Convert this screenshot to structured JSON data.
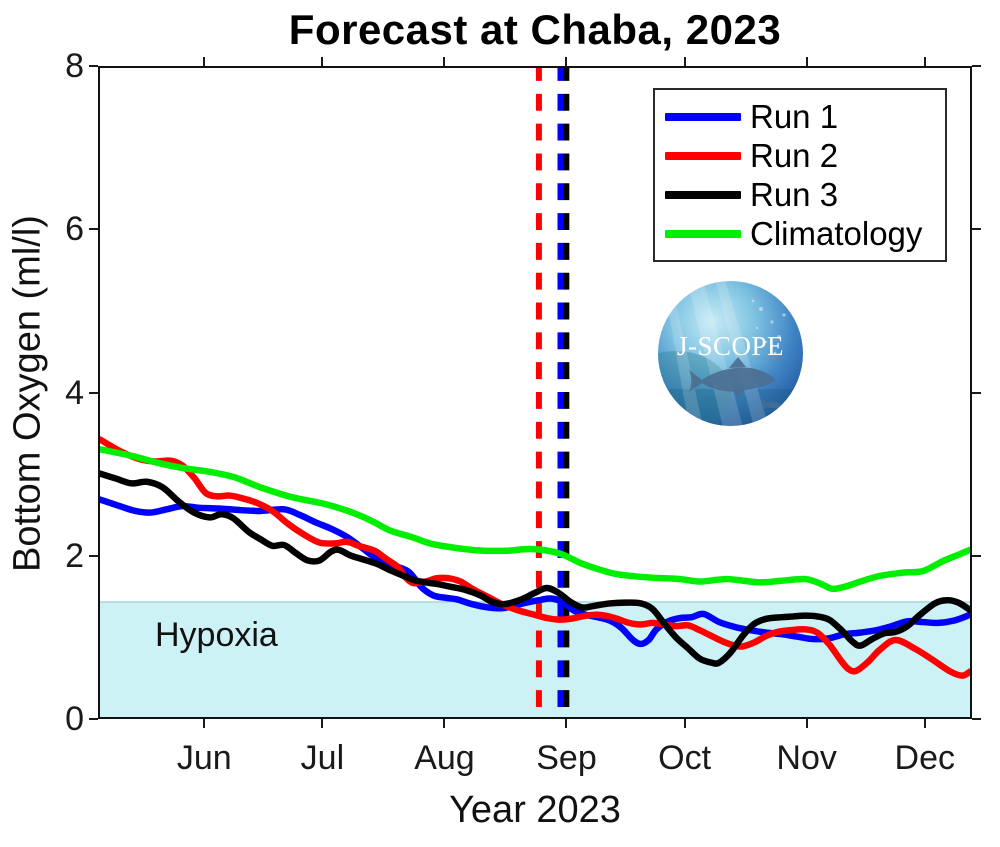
{
  "figure": {
    "title": "Forecast at Chaba, 2023",
    "xlabel": "Year 2023",
    "ylabel": "Bottom Oxygen (ml/l)"
  },
  "hypoxia": {
    "label": "Hypoxia",
    "threshold_mll": 1.4,
    "fill_color": "#cdf2f6"
  },
  "logo": {
    "text": "J-SCOPE"
  },
  "chart_data": {
    "type": "line",
    "title": "Forecast at Chaba, 2023",
    "xlabel": "Year 2023",
    "ylabel": "Bottom Oxygen (ml/l)",
    "grid": false,
    "legend_position": "top-right",
    "x_axis": {
      "unit": "days from plot start (May 2023) to mid-December 2023",
      "range": [
        0,
        222
      ],
      "month_ticks": [
        {
          "label": "Jun",
          "day": 27
        },
        {
          "label": "Jul",
          "day": 57
        },
        {
          "label": "Aug",
          "day": 88
        },
        {
          "label": "Sep",
          "day": 119
        },
        {
          "label": "Oct",
          "day": 149
        },
        {
          "label": "Nov",
          "day": 180
        },
        {
          "label": "Dec",
          "day": 210
        }
      ]
    },
    "y_axis": {
      "range": [
        0,
        8
      ],
      "ticks": [
        0,
        2,
        4,
        6,
        8
      ]
    },
    "hypoxia_region": {
      "label": "Hypoxia",
      "ymin": 0,
      "ymax": 1.4,
      "color": "#cdf2f6"
    },
    "vlines": [
      {
        "name": "forecast-start-vline-red",
        "color": "#ff0000",
        "day": 112,
        "style": "dashed"
      },
      {
        "name": "forecast-start-vline-blue",
        "color": "#0000ff",
        "day": 117.5,
        "style": "dashed"
      },
      {
        "name": "forecast-start-vline-black",
        "color": "#000000",
        "day": 119,
        "style": "dashed"
      }
    ],
    "series": [
      {
        "name": "Run 1",
        "color": "#0000ff",
        "points": [
          [
            0,
            2.68
          ],
          [
            5,
            2.6
          ],
          [
            9,
            2.54
          ],
          [
            13,
            2.52
          ],
          [
            17,
            2.56
          ],
          [
            21,
            2.6
          ],
          [
            25,
            2.58
          ],
          [
            30,
            2.57
          ],
          [
            36,
            2.55
          ],
          [
            41,
            2.54
          ],
          [
            47,
            2.56
          ],
          [
            51,
            2.49
          ],
          [
            55,
            2.4
          ],
          [
            59,
            2.32
          ],
          [
            63,
            2.22
          ],
          [
            67,
            2.08
          ],
          [
            70,
            1.97
          ],
          [
            73,
            1.89
          ],
          [
            76,
            1.85
          ],
          [
            79,
            1.78
          ],
          [
            82,
            1.6
          ],
          [
            85,
            1.5
          ],
          [
            88,
            1.47
          ],
          [
            91,
            1.45
          ],
          [
            95,
            1.39
          ],
          [
            99,
            1.35
          ],
          [
            102,
            1.34
          ],
          [
            105,
            1.36
          ],
          [
            108,
            1.4
          ],
          [
            112,
            1.44
          ],
          [
            115,
            1.46
          ],
          [
            118,
            1.42
          ],
          [
            121,
            1.31
          ],
          [
            124,
            1.26
          ],
          [
            127,
            1.23
          ],
          [
            130,
            1.19
          ],
          [
            133,
            1.1
          ],
          [
            136,
            0.95
          ],
          [
            138,
            0.9
          ],
          [
            140,
            0.95
          ],
          [
            142,
            1.08
          ],
          [
            145,
            1.18
          ],
          [
            148,
            1.22
          ],
          [
            151,
            1.23
          ],
          [
            154,
            1.27
          ],
          [
            158,
            1.17
          ],
          [
            162,
            1.11
          ],
          [
            166,
            1.07
          ],
          [
            170,
            1.04
          ],
          [
            174,
            1.02
          ],
          [
            178,
            0.99
          ],
          [
            182,
            0.96
          ],
          [
            186,
            0.97
          ],
          [
            190,
            1.02
          ],
          [
            194,
            1.04
          ],
          [
            198,
            1.07
          ],
          [
            202,
            1.12
          ],
          [
            206,
            1.18
          ],
          [
            210,
            1.17
          ],
          [
            214,
            1.16
          ],
          [
            218,
            1.19
          ],
          [
            222,
            1.26
          ]
        ]
      },
      {
        "name": "Run 2",
        "color": "#ff0000",
        "points": [
          [
            0,
            3.42
          ],
          [
            5,
            3.28
          ],
          [
            10,
            3.18
          ],
          [
            14,
            3.15
          ],
          [
            18,
            3.16
          ],
          [
            21,
            3.1
          ],
          [
            24,
            2.95
          ],
          [
            27,
            2.76
          ],
          [
            30,
            2.72
          ],
          [
            33,
            2.73
          ],
          [
            36,
            2.7
          ],
          [
            40,
            2.64
          ],
          [
            44,
            2.54
          ],
          [
            48,
            2.38
          ],
          [
            52,
            2.25
          ],
          [
            56,
            2.15
          ],
          [
            60,
            2.14
          ],
          [
            63,
            2.16
          ],
          [
            66,
            2.11
          ],
          [
            70,
            2.05
          ],
          [
            73,
            1.95
          ],
          [
            76,
            1.85
          ],
          [
            78,
            1.72
          ],
          [
            80,
            1.65
          ],
          [
            83,
            1.67
          ],
          [
            86,
            1.71
          ],
          [
            89,
            1.71
          ],
          [
            92,
            1.67
          ],
          [
            95,
            1.58
          ],
          [
            99,
            1.48
          ],
          [
            103,
            1.38
          ],
          [
            107,
            1.31
          ],
          [
            111,
            1.26
          ],
          [
            114,
            1.22
          ],
          [
            117,
            1.2
          ],
          [
            120,
            1.21
          ],
          [
            123,
            1.24
          ],
          [
            126,
            1.26
          ],
          [
            129,
            1.25
          ],
          [
            132,
            1.21
          ],
          [
            135,
            1.16
          ],
          [
            138,
            1.14
          ],
          [
            141,
            1.16
          ],
          [
            144,
            1.14
          ],
          [
            147,
            1.12
          ],
          [
            150,
            1.13
          ],
          [
            153,
            1.07
          ],
          [
            156,
            1.0
          ],
          [
            159,
            0.93
          ],
          [
            162,
            0.88
          ],
          [
            164,
            0.87
          ],
          [
            167,
            0.92
          ],
          [
            170,
            1.0
          ],
          [
            173,
            1.05
          ],
          [
            176,
            1.07
          ],
          [
            180,
            1.08
          ],
          [
            183,
            1.04
          ],
          [
            186,
            0.9
          ],
          [
            189,
            0.7
          ],
          [
            191,
            0.59
          ],
          [
            193,
            0.57
          ],
          [
            196,
            0.68
          ],
          [
            199,
            0.83
          ],
          [
            203,
            0.95
          ],
          [
            208,
            0.84
          ],
          [
            212,
            0.72
          ],
          [
            217,
            0.56
          ],
          [
            220,
            0.51
          ],
          [
            222,
            0.56
          ]
        ]
      },
      {
        "name": "Run 3",
        "color": "#000000",
        "points": [
          [
            0,
            3.0
          ],
          [
            4,
            2.94
          ],
          [
            8,
            2.88
          ],
          [
            12,
            2.9
          ],
          [
            16,
            2.83
          ],
          [
            20,
            2.66
          ],
          [
            24,
            2.52
          ],
          [
            28,
            2.46
          ],
          [
            31,
            2.5
          ],
          [
            34,
            2.45
          ],
          [
            38,
            2.28
          ],
          [
            41,
            2.19
          ],
          [
            44,
            2.11
          ],
          [
            47,
            2.12
          ],
          [
            50,
            2.02
          ],
          [
            53,
            1.93
          ],
          [
            56,
            1.93
          ],
          [
            59,
            2.04
          ],
          [
            61,
            2.06
          ],
          [
            64,
            1.99
          ],
          [
            68,
            1.93
          ],
          [
            71,
            1.88
          ],
          [
            74,
            1.81
          ],
          [
            77,
            1.75
          ],
          [
            80,
            1.69
          ],
          [
            83,
            1.66
          ],
          [
            86,
            1.64
          ],
          [
            89,
            1.61
          ],
          [
            93,
            1.57
          ],
          [
            97,
            1.5
          ],
          [
            100,
            1.42
          ],
          [
            103,
            1.39
          ],
          [
            107,
            1.44
          ],
          [
            111,
            1.53
          ],
          [
            114,
            1.59
          ],
          [
            117,
            1.53
          ],
          [
            120,
            1.42
          ],
          [
            123,
            1.35
          ],
          [
            126,
            1.37
          ],
          [
            130,
            1.4
          ],
          [
            134,
            1.41
          ],
          [
            138,
            1.4
          ],
          [
            141,
            1.33
          ],
          [
            144,
            1.15
          ],
          [
            147,
            0.98
          ],
          [
            150,
            0.85
          ],
          [
            153,
            0.72
          ],
          [
            156,
            0.67
          ],
          [
            158,
            0.67
          ],
          [
            161,
            0.8
          ],
          [
            164,
            1.0
          ],
          [
            167,
            1.15
          ],
          [
            170,
            1.21
          ],
          [
            174,
            1.23
          ],
          [
            177,
            1.24
          ],
          [
            180,
            1.25
          ],
          [
            183,
            1.24
          ],
          [
            186,
            1.2
          ],
          [
            189,
            1.08
          ],
          [
            192,
            0.93
          ],
          [
            194,
            0.88
          ],
          [
            197,
            0.96
          ],
          [
            200,
            1.03
          ],
          [
            203,
            1.05
          ],
          [
            206,
            1.12
          ],
          [
            209,
            1.25
          ],
          [
            213,
            1.4
          ],
          [
            216,
            1.44
          ],
          [
            219,
            1.41
          ],
          [
            222,
            1.32
          ]
        ]
      },
      {
        "name": "Climatology",
        "color": "#00ee00",
        "points": [
          [
            0,
            3.3
          ],
          [
            8,
            3.22
          ],
          [
            15,
            3.13
          ],
          [
            21,
            3.07
          ],
          [
            27,
            3.03
          ],
          [
            34,
            2.96
          ],
          [
            41,
            2.83
          ],
          [
            49,
            2.71
          ],
          [
            57,
            2.63
          ],
          [
            62,
            2.56
          ],
          [
            66,
            2.49
          ],
          [
            70,
            2.4
          ],
          [
            74,
            2.3
          ],
          [
            80,
            2.21
          ],
          [
            85,
            2.13
          ],
          [
            93,
            2.07
          ],
          [
            98,
            2.05
          ],
          [
            104,
            2.05
          ],
          [
            110,
            2.07
          ],
          [
            117,
            2.02
          ],
          [
            123,
            1.89
          ],
          [
            128,
            1.81
          ],
          [
            132,
            1.76
          ],
          [
            140,
            1.72
          ],
          [
            148,
            1.7
          ],
          [
            153,
            1.67
          ],
          [
            160,
            1.7
          ],
          [
            168,
            1.66
          ],
          [
            174,
            1.68
          ],
          [
            180,
            1.7
          ],
          [
            184,
            1.64
          ],
          [
            187,
            1.58
          ],
          [
            191,
            1.62
          ],
          [
            194,
            1.67
          ],
          [
            199,
            1.74
          ],
          [
            205,
            1.78
          ],
          [
            210,
            1.8
          ],
          [
            215,
            1.92
          ],
          [
            219,
            2.0
          ],
          [
            222,
            2.06
          ]
        ]
      }
    ]
  }
}
